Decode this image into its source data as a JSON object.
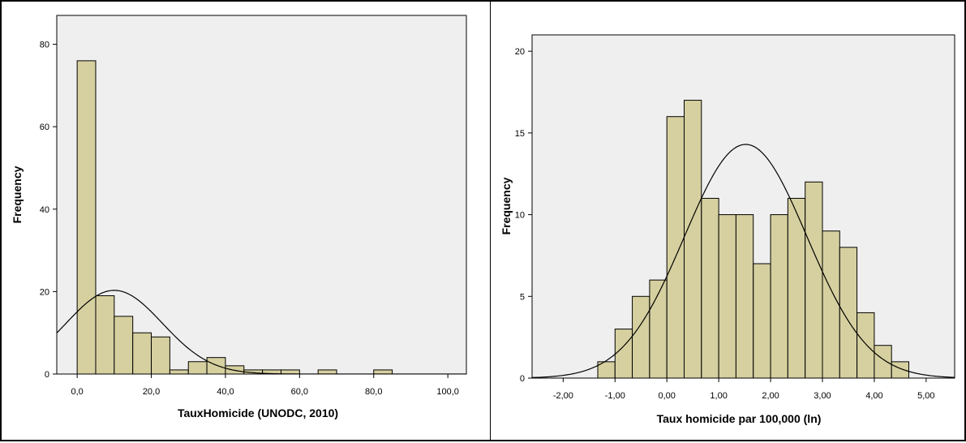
{
  "colors": {
    "plot_bg": "#efefef",
    "bar_fill": "#d6d0a0",
    "bar_stroke": "#000000",
    "curve": "#000000"
  },
  "chart_data": [
    {
      "type": "bar",
      "subtype": "histogram-with-normal-curve",
      "xlabel": "TauxHomicide (UNODC, 2010)",
      "ylabel": "Frequency",
      "xlim": [
        -5.5,
        105
      ],
      "ylim": [
        0,
        87
      ],
      "xticks": [
        0,
        20,
        40,
        60,
        80,
        100
      ],
      "xtick_labels": [
        "0,0",
        "20,0",
        "40,0",
        "60,0",
        "80,0",
        "100,0"
      ],
      "yticks": [
        0,
        20,
        40,
        60,
        80
      ],
      "ytick_labels": [
        "0",
        "20",
        "40",
        "60",
        "80"
      ],
      "bin_width": 5,
      "bins": [
        {
          "start": 0,
          "value": 76
        },
        {
          "start": 5,
          "value": 19
        },
        {
          "start": 10,
          "value": 14
        },
        {
          "start": 15,
          "value": 10
        },
        {
          "start": 20,
          "value": 9
        },
        {
          "start": 25,
          "value": 1
        },
        {
          "start": 30,
          "value": 3
        },
        {
          "start": 35,
          "value": 4
        },
        {
          "start": 40,
          "value": 2
        },
        {
          "start": 45,
          "value": 1
        },
        {
          "start": 50,
          "value": 1
        },
        {
          "start": 55,
          "value": 1
        },
        {
          "start": 65,
          "value": 1
        },
        {
          "start": 80,
          "value": 1
        }
      ],
      "normal_curve": {
        "mean": 10,
        "sd": 13,
        "peak": 20.3
      },
      "grid": false
    },
    {
      "type": "bar",
      "subtype": "histogram-with-normal-curve",
      "xlabel": "Taux homicide par 100,000 (ln)",
      "ylabel": "Frequency",
      "xlim": [
        -2.6,
        5.55
      ],
      "ylim": [
        0,
        21
      ],
      "xticks": [
        -2,
        -1,
        0,
        1,
        2,
        3,
        4,
        5
      ],
      "xtick_labels": [
        "-2,00",
        "-1,00",
        "0,00",
        "1,00",
        "2,00",
        "3,00",
        "4,00",
        "5,00"
      ],
      "yticks": [
        0,
        5,
        10,
        15,
        20
      ],
      "ytick_labels": [
        "0",
        "5",
        "10",
        "15",
        "20"
      ],
      "bin_width": 0.333,
      "bins": [
        {
          "start": -1.333,
          "value": 1
        },
        {
          "start": -1.0,
          "value": 3
        },
        {
          "start": -0.667,
          "value": 5
        },
        {
          "start": -0.333,
          "value": 6
        },
        {
          "start": 0.0,
          "value": 16
        },
        {
          "start": 0.333,
          "value": 17
        },
        {
          "start": 0.667,
          "value": 11
        },
        {
          "start": 1.0,
          "value": 10
        },
        {
          "start": 1.333,
          "value": 10
        },
        {
          "start": 1.667,
          "value": 7
        },
        {
          "start": 2.0,
          "value": 10
        },
        {
          "start": 2.333,
          "value": 11
        },
        {
          "start": 2.667,
          "value": 12
        },
        {
          "start": 3.0,
          "value": 9
        },
        {
          "start": 3.333,
          "value": 8
        },
        {
          "start": 3.667,
          "value": 4
        },
        {
          "start": 4.0,
          "value": 2
        },
        {
          "start": 4.333,
          "value": 1
        }
      ],
      "normal_curve": {
        "mean": 1.52,
        "sd": 1.18,
        "peak": 14.3
      },
      "grid": false
    }
  ]
}
